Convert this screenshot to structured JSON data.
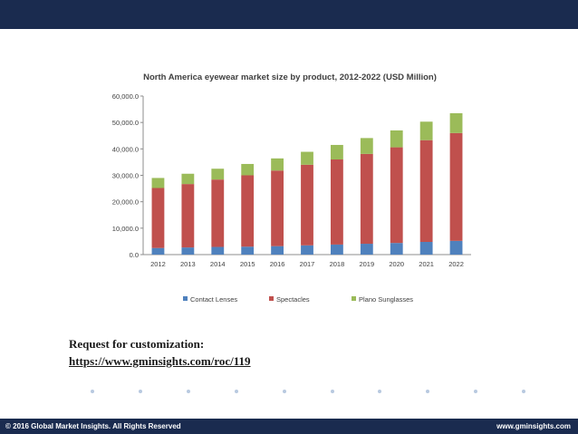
{
  "header": {
    "bar_color": "#1a2b4f"
  },
  "chart_data": {
    "type": "bar",
    "stacked": true,
    "title": "North America eyewear market size by product, 2012-2022 (USD Million)",
    "categories": [
      "2012",
      "2013",
      "2014",
      "2015",
      "2016",
      "2017",
      "2018",
      "2019",
      "2020",
      "2021",
      "2022"
    ],
    "series": [
      {
        "name": "Contact Lenses",
        "color": "#4f81bd",
        "values": [
          2500,
          2700,
          2900,
          3000,
          3200,
          3500,
          3800,
          4100,
          4400,
          4800,
          5200
        ]
      },
      {
        "name": "Spectacles",
        "color": "#c0504d",
        "values": [
          22700,
          24000,
          25500,
          27000,
          28600,
          30500,
          32200,
          34000,
          36200,
          38500,
          40800
        ]
      },
      {
        "name": "Plano Sunglasses",
        "color": "#9bbb59",
        "values": [
          3800,
          3900,
          4100,
          4300,
          4600,
          4900,
          5500,
          6000,
          6400,
          7000,
          7500
        ]
      }
    ],
    "yticks": [
      "0.0",
      "10,000.0",
      "20,000.0",
      "30,000.0",
      "40,000.0",
      "50,000.0",
      "60,000.0"
    ],
    "ylim": [
      0,
      60000
    ],
    "grid": false,
    "legend_position": "bottom"
  },
  "request": {
    "label": "Request for customization:",
    "link": "https://www.gminsights.com/roc/119"
  },
  "footer": {
    "copyright": "© 2016 Global Market Insights. All Rights Reserved",
    "website": "www.gminsights.com"
  }
}
